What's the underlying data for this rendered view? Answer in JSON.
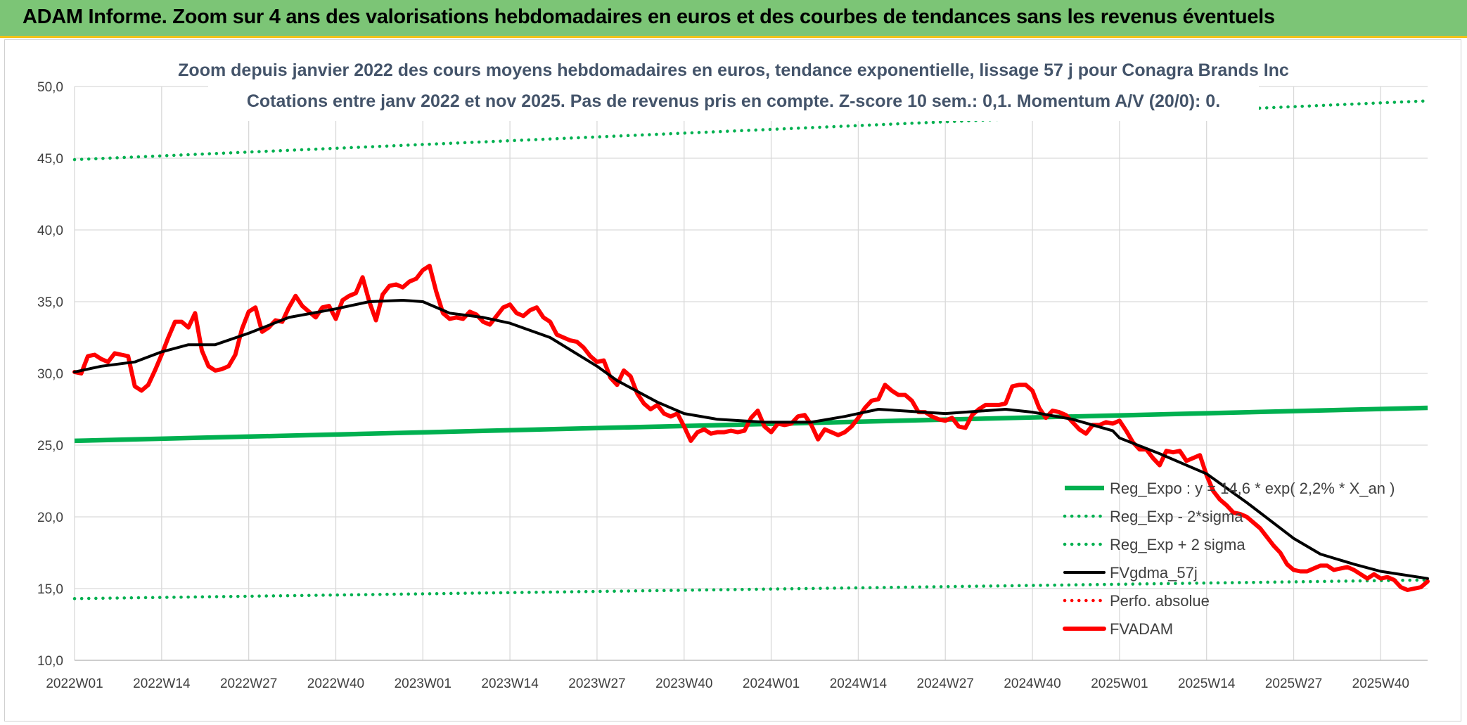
{
  "banner": {
    "title": "ADAM Informe. Zoom sur 4 ans des valorisations hebdomadaires en euros et des courbes de tendances sans les revenus éventuels"
  },
  "colors": {
    "banner": "#7cc576",
    "banner_border": "#f2c21a",
    "regression": "#00b050",
    "fvadam": "#ff0000",
    "smooth": "#000000",
    "grid": "#d9d9d9"
  },
  "chart_data": {
    "type": "line",
    "title": "Zoom depuis janvier 2022 des cours moyens hebdomadaires en euros, tendance exponentielle, lissage 57 j pour Conagra Brands Inc",
    "subtitle": "Cotations entre janv 2022 et nov 2025. Pas de revenus pris en compte. Z-score 10 sem.: 0,1. Momentum A/V (20/0): 0.",
    "x_tick_labels": [
      "2022W01",
      "2022W14",
      "2022W27",
      "2022W40",
      "2023W01",
      "2023W14",
      "2023W27",
      "2023W40",
      "2024W01",
      "2024W14",
      "2024W27",
      "2024W40",
      "2025W01",
      "2025W14",
      "2025W27",
      "2025W40"
    ],
    "x_range": [
      "2022W01",
      "2025W47"
    ],
    "y_tick_labels": [
      "10,0",
      "15,0",
      "20,0",
      "25,0",
      "30,0",
      "35,0",
      "40,0",
      "45,0",
      "50,0"
    ],
    "ylim": [
      10,
      50
    ],
    "grid": true,
    "legend_position": "bottom-right",
    "series": [
      {
        "name": "Reg_Expo : y = 14,6 * exp( 2,2% *  X_an )",
        "style": "solid",
        "color": "#00b050",
        "points": [
          [
            "2022W01",
            25.3
          ],
          [
            "2025W47",
            27.6
          ]
        ]
      },
      {
        "name": "Reg_Exp - 2*sigma",
        "style": "dotted",
        "color": "#00b050",
        "points": [
          [
            "2022W01",
            14.3
          ],
          [
            "2025W47",
            15.6
          ]
        ]
      },
      {
        "name": "Reg_Exp + 2 sigma",
        "style": "dotted",
        "color": "#00b050",
        "points": [
          [
            "2022W01",
            44.9
          ],
          [
            "2025W47",
            49.0
          ]
        ]
      },
      {
        "name": "FVgdma_57j",
        "style": "solid",
        "color": "#000000",
        "points": [
          [
            "2022W01",
            30.1
          ],
          [
            "2022W05",
            30.5
          ],
          [
            "2022W10",
            30.8
          ],
          [
            "2022W14",
            31.5
          ],
          [
            "2022W18",
            32.0
          ],
          [
            "2022W22",
            32.0
          ],
          [
            "2022W27",
            32.8
          ],
          [
            "2022W33",
            33.9
          ],
          [
            "2022W40",
            34.5
          ],
          [
            "2022W45",
            35.0
          ],
          [
            "2022W50",
            35.1
          ],
          [
            "2023W01",
            35.0
          ],
          [
            "2023W05",
            34.2
          ],
          [
            "2023W10",
            33.9
          ],
          [
            "2023W14",
            33.5
          ],
          [
            "2023W20",
            32.5
          ],
          [
            "2023W27",
            30.5
          ],
          [
            "2023W30",
            29.5
          ],
          [
            "2023W36",
            28.0
          ],
          [
            "2023W40",
            27.2
          ],
          [
            "2023W45",
            26.8
          ],
          [
            "2023W52",
            26.6
          ],
          [
            "2024W07",
            26.6
          ],
          [
            "2024W12",
            27.0
          ],
          [
            "2024W17",
            27.5
          ],
          [
            "2024W27",
            27.2
          ],
          [
            "2024W36",
            27.5
          ],
          [
            "2024W40",
            27.3
          ],
          [
            "2024W46",
            26.8
          ],
          [
            "2024W52",
            26.0
          ],
          [
            "2025W01",
            25.5
          ],
          [
            "2025W07",
            24.4
          ],
          [
            "2025W14",
            23.0
          ],
          [
            "2025W20",
            21.0
          ],
          [
            "2025W27",
            18.5
          ],
          [
            "2025W31",
            17.4
          ],
          [
            "2025W36",
            16.7
          ],
          [
            "2025W40",
            16.2
          ],
          [
            "2025W47",
            15.7
          ]
        ]
      },
      {
        "name": "Perfo. absolue",
        "style": "dotted",
        "color": "#ff0000",
        "points": []
      },
      {
        "name": "FVADAM",
        "style": "solid",
        "color": "#ff0000",
        "points": [
          [
            "2022W01",
            30.1
          ],
          [
            "2022W02",
            30.0
          ],
          [
            "2022W03",
            31.2
          ],
          [
            "2022W04",
            31.3
          ],
          [
            "2022W05",
            31.0
          ],
          [
            "2022W06",
            30.8
          ],
          [
            "2022W07",
            31.4
          ],
          [
            "2022W08",
            31.3
          ],
          [
            "2022W09",
            31.2
          ],
          [
            "2022W10",
            29.1
          ],
          [
            "2022W11",
            28.8
          ],
          [
            "2022W12",
            29.2
          ],
          [
            "2022W13",
            30.2
          ],
          [
            "2022W14",
            31.3
          ],
          [
            "2022W15",
            32.5
          ],
          [
            "2022W16",
            33.6
          ],
          [
            "2022W17",
            33.6
          ],
          [
            "2022W18",
            33.2
          ],
          [
            "2022W19",
            34.2
          ],
          [
            "2022W20",
            31.6
          ],
          [
            "2022W21",
            30.5
          ],
          [
            "2022W22",
            30.2
          ],
          [
            "2022W23",
            30.3
          ],
          [
            "2022W24",
            30.5
          ],
          [
            "2022W25",
            31.3
          ],
          [
            "2022W26",
            33.1
          ],
          [
            "2022W27",
            34.3
          ],
          [
            "2022W28",
            34.6
          ],
          [
            "2022W29",
            32.9
          ],
          [
            "2022W30",
            33.2
          ],
          [
            "2022W31",
            33.7
          ],
          [
            "2022W32",
            33.6
          ],
          [
            "2022W33",
            34.6
          ],
          [
            "2022W34",
            35.4
          ],
          [
            "2022W35",
            34.7
          ],
          [
            "2022W36",
            34.3
          ],
          [
            "2022W37",
            33.9
          ],
          [
            "2022W38",
            34.6
          ],
          [
            "2022W39",
            34.7
          ],
          [
            "2022W40",
            33.8
          ],
          [
            "2022W41",
            35.1
          ],
          [
            "2022W42",
            35.4
          ],
          [
            "2022W43",
            35.6
          ],
          [
            "2022W44",
            36.7
          ],
          [
            "2022W45",
            35.0
          ],
          [
            "2022W46",
            33.7
          ],
          [
            "2022W47",
            35.5
          ],
          [
            "2022W48",
            36.1
          ],
          [
            "2022W49",
            36.2
          ],
          [
            "2022W50",
            36.0
          ],
          [
            "2022W51",
            36.4
          ],
          [
            "2022W52",
            36.6
          ],
          [
            "2023W01",
            37.2
          ],
          [
            "2023W02",
            37.5
          ],
          [
            "2023W03",
            35.7
          ],
          [
            "2023W04",
            34.2
          ],
          [
            "2023W05",
            33.8
          ],
          [
            "2023W06",
            33.9
          ],
          [
            "2023W07",
            33.8
          ],
          [
            "2023W08",
            34.3
          ],
          [
            "2023W09",
            34.1
          ],
          [
            "2023W10",
            33.6
          ],
          [
            "2023W11",
            33.4
          ],
          [
            "2023W12",
            34.0
          ],
          [
            "2023W13",
            34.6
          ],
          [
            "2023W14",
            34.8
          ],
          [
            "2023W15",
            34.2
          ],
          [
            "2023W16",
            34.0
          ],
          [
            "2023W17",
            34.4
          ],
          [
            "2023W18",
            34.6
          ],
          [
            "2023W19",
            33.9
          ],
          [
            "2023W20",
            33.6
          ],
          [
            "2023W21",
            32.7
          ],
          [
            "2023W22",
            32.5
          ],
          [
            "2023W23",
            32.3
          ],
          [
            "2023W24",
            32.2
          ],
          [
            "2023W25",
            31.8
          ],
          [
            "2023W26",
            31.2
          ],
          [
            "2023W27",
            30.8
          ],
          [
            "2023W28",
            30.9
          ],
          [
            "2023W29",
            29.7
          ],
          [
            "2023W30",
            29.2
          ],
          [
            "2023W31",
            30.2
          ],
          [
            "2023W32",
            29.8
          ],
          [
            "2023W33",
            28.6
          ],
          [
            "2023W34",
            27.9
          ],
          [
            "2023W35",
            27.5
          ],
          [
            "2023W36",
            27.8
          ],
          [
            "2023W37",
            27.2
          ],
          [
            "2023W38",
            27.0
          ],
          [
            "2023W39",
            27.2
          ],
          [
            "2023W40",
            26.3
          ],
          [
            "2023W41",
            25.3
          ],
          [
            "2023W42",
            25.9
          ],
          [
            "2023W43",
            26.1
          ],
          [
            "2023W44",
            25.8
          ],
          [
            "2023W45",
            25.9
          ],
          [
            "2023W46",
            25.9
          ],
          [
            "2023W47",
            26.0
          ],
          [
            "2023W48",
            25.9
          ],
          [
            "2023W49",
            26.0
          ],
          [
            "2023W50",
            26.9
          ],
          [
            "2023W51",
            27.4
          ],
          [
            "2023W52",
            26.3
          ],
          [
            "2024W01",
            25.9
          ],
          [
            "2024W02",
            26.5
          ],
          [
            "2024W03",
            26.4
          ],
          [
            "2024W04",
            26.5
          ],
          [
            "2024W05",
            27.0
          ],
          [
            "2024W06",
            27.1
          ],
          [
            "2024W07",
            26.4
          ],
          [
            "2024W08",
            25.4
          ],
          [
            "2024W09",
            26.1
          ],
          [
            "2024W10",
            25.9
          ],
          [
            "2024W11",
            25.7
          ],
          [
            "2024W12",
            25.9
          ],
          [
            "2024W13",
            26.3
          ],
          [
            "2024W14",
            26.9
          ],
          [
            "2024W15",
            27.6
          ],
          [
            "2024W16",
            28.1
          ],
          [
            "2024W17",
            28.2
          ],
          [
            "2024W18",
            29.2
          ],
          [
            "2024W19",
            28.8
          ],
          [
            "2024W20",
            28.5
          ],
          [
            "2024W21",
            28.5
          ],
          [
            "2024W22",
            28.1
          ],
          [
            "2024W23",
            27.3
          ],
          [
            "2024W24",
            27.3
          ],
          [
            "2024W25",
            27.0
          ],
          [
            "2024W26",
            26.8
          ],
          [
            "2024W27",
            26.7
          ],
          [
            "2024W28",
            26.9
          ],
          [
            "2024W29",
            26.3
          ],
          [
            "2024W30",
            26.2
          ],
          [
            "2024W31",
            27.1
          ],
          [
            "2024W32",
            27.5
          ],
          [
            "2024W33",
            27.8
          ],
          [
            "2024W34",
            27.8
          ],
          [
            "2024W35",
            27.8
          ],
          [
            "2024W36",
            27.9
          ],
          [
            "2024W37",
            29.1
          ],
          [
            "2024W38",
            29.2
          ],
          [
            "2024W39",
            29.2
          ],
          [
            "2024W40",
            28.8
          ],
          [
            "2024W41",
            27.6
          ],
          [
            "2024W42",
            26.9
          ],
          [
            "2024W43",
            27.4
          ],
          [
            "2024W44",
            27.3
          ],
          [
            "2024W45",
            27.1
          ],
          [
            "2024W46",
            26.6
          ],
          [
            "2024W47",
            26.1
          ],
          [
            "2024W48",
            25.8
          ],
          [
            "2024W49",
            26.4
          ],
          [
            "2024W50",
            26.4
          ],
          [
            "2024W51",
            26.6
          ],
          [
            "2024W52",
            26.5
          ],
          [
            "2025W01",
            26.7
          ],
          [
            "2025W02",
            26.0
          ],
          [
            "2025W03",
            25.2
          ],
          [
            "2025W04",
            24.7
          ],
          [
            "2025W05",
            24.7
          ],
          [
            "2025W06",
            24.1
          ],
          [
            "2025W07",
            23.6
          ],
          [
            "2025W08",
            24.6
          ],
          [
            "2025W09",
            24.5
          ],
          [
            "2025W10",
            24.6
          ],
          [
            "2025W11",
            23.9
          ],
          [
            "2025W12",
            24.1
          ],
          [
            "2025W13",
            24.3
          ],
          [
            "2025W14",
            22.9
          ],
          [
            "2025W15",
            21.8
          ],
          [
            "2025W16",
            21.2
          ],
          [
            "2025W17",
            20.8
          ],
          [
            "2025W18",
            20.3
          ],
          [
            "2025W19",
            20.2
          ],
          [
            "2025W20",
            20.0
          ],
          [
            "2025W21",
            19.6
          ],
          [
            "2025W22",
            19.2
          ],
          [
            "2025W23",
            18.6
          ],
          [
            "2025W24",
            18.0
          ],
          [
            "2025W25",
            17.5
          ],
          [
            "2025W26",
            16.7
          ],
          [
            "2025W27",
            16.3
          ],
          [
            "2025W28",
            16.2
          ],
          [
            "2025W29",
            16.2
          ],
          [
            "2025W30",
            16.4
          ],
          [
            "2025W31",
            16.6
          ],
          [
            "2025W32",
            16.6
          ],
          [
            "2025W33",
            16.3
          ],
          [
            "2025W34",
            16.4
          ],
          [
            "2025W35",
            16.5
          ],
          [
            "2025W36",
            16.3
          ],
          [
            "2025W37",
            16.0
          ],
          [
            "2025W38",
            15.7
          ],
          [
            "2025W39",
            16.0
          ],
          [
            "2025W40",
            15.7
          ],
          [
            "2025W41",
            15.8
          ],
          [
            "2025W42",
            15.6
          ],
          [
            "2025W43",
            15.1
          ],
          [
            "2025W44",
            14.9
          ],
          [
            "2025W45",
            15.0
          ],
          [
            "2025W46",
            15.1
          ],
          [
            "2025W47",
            15.5
          ]
        ]
      }
    ]
  }
}
